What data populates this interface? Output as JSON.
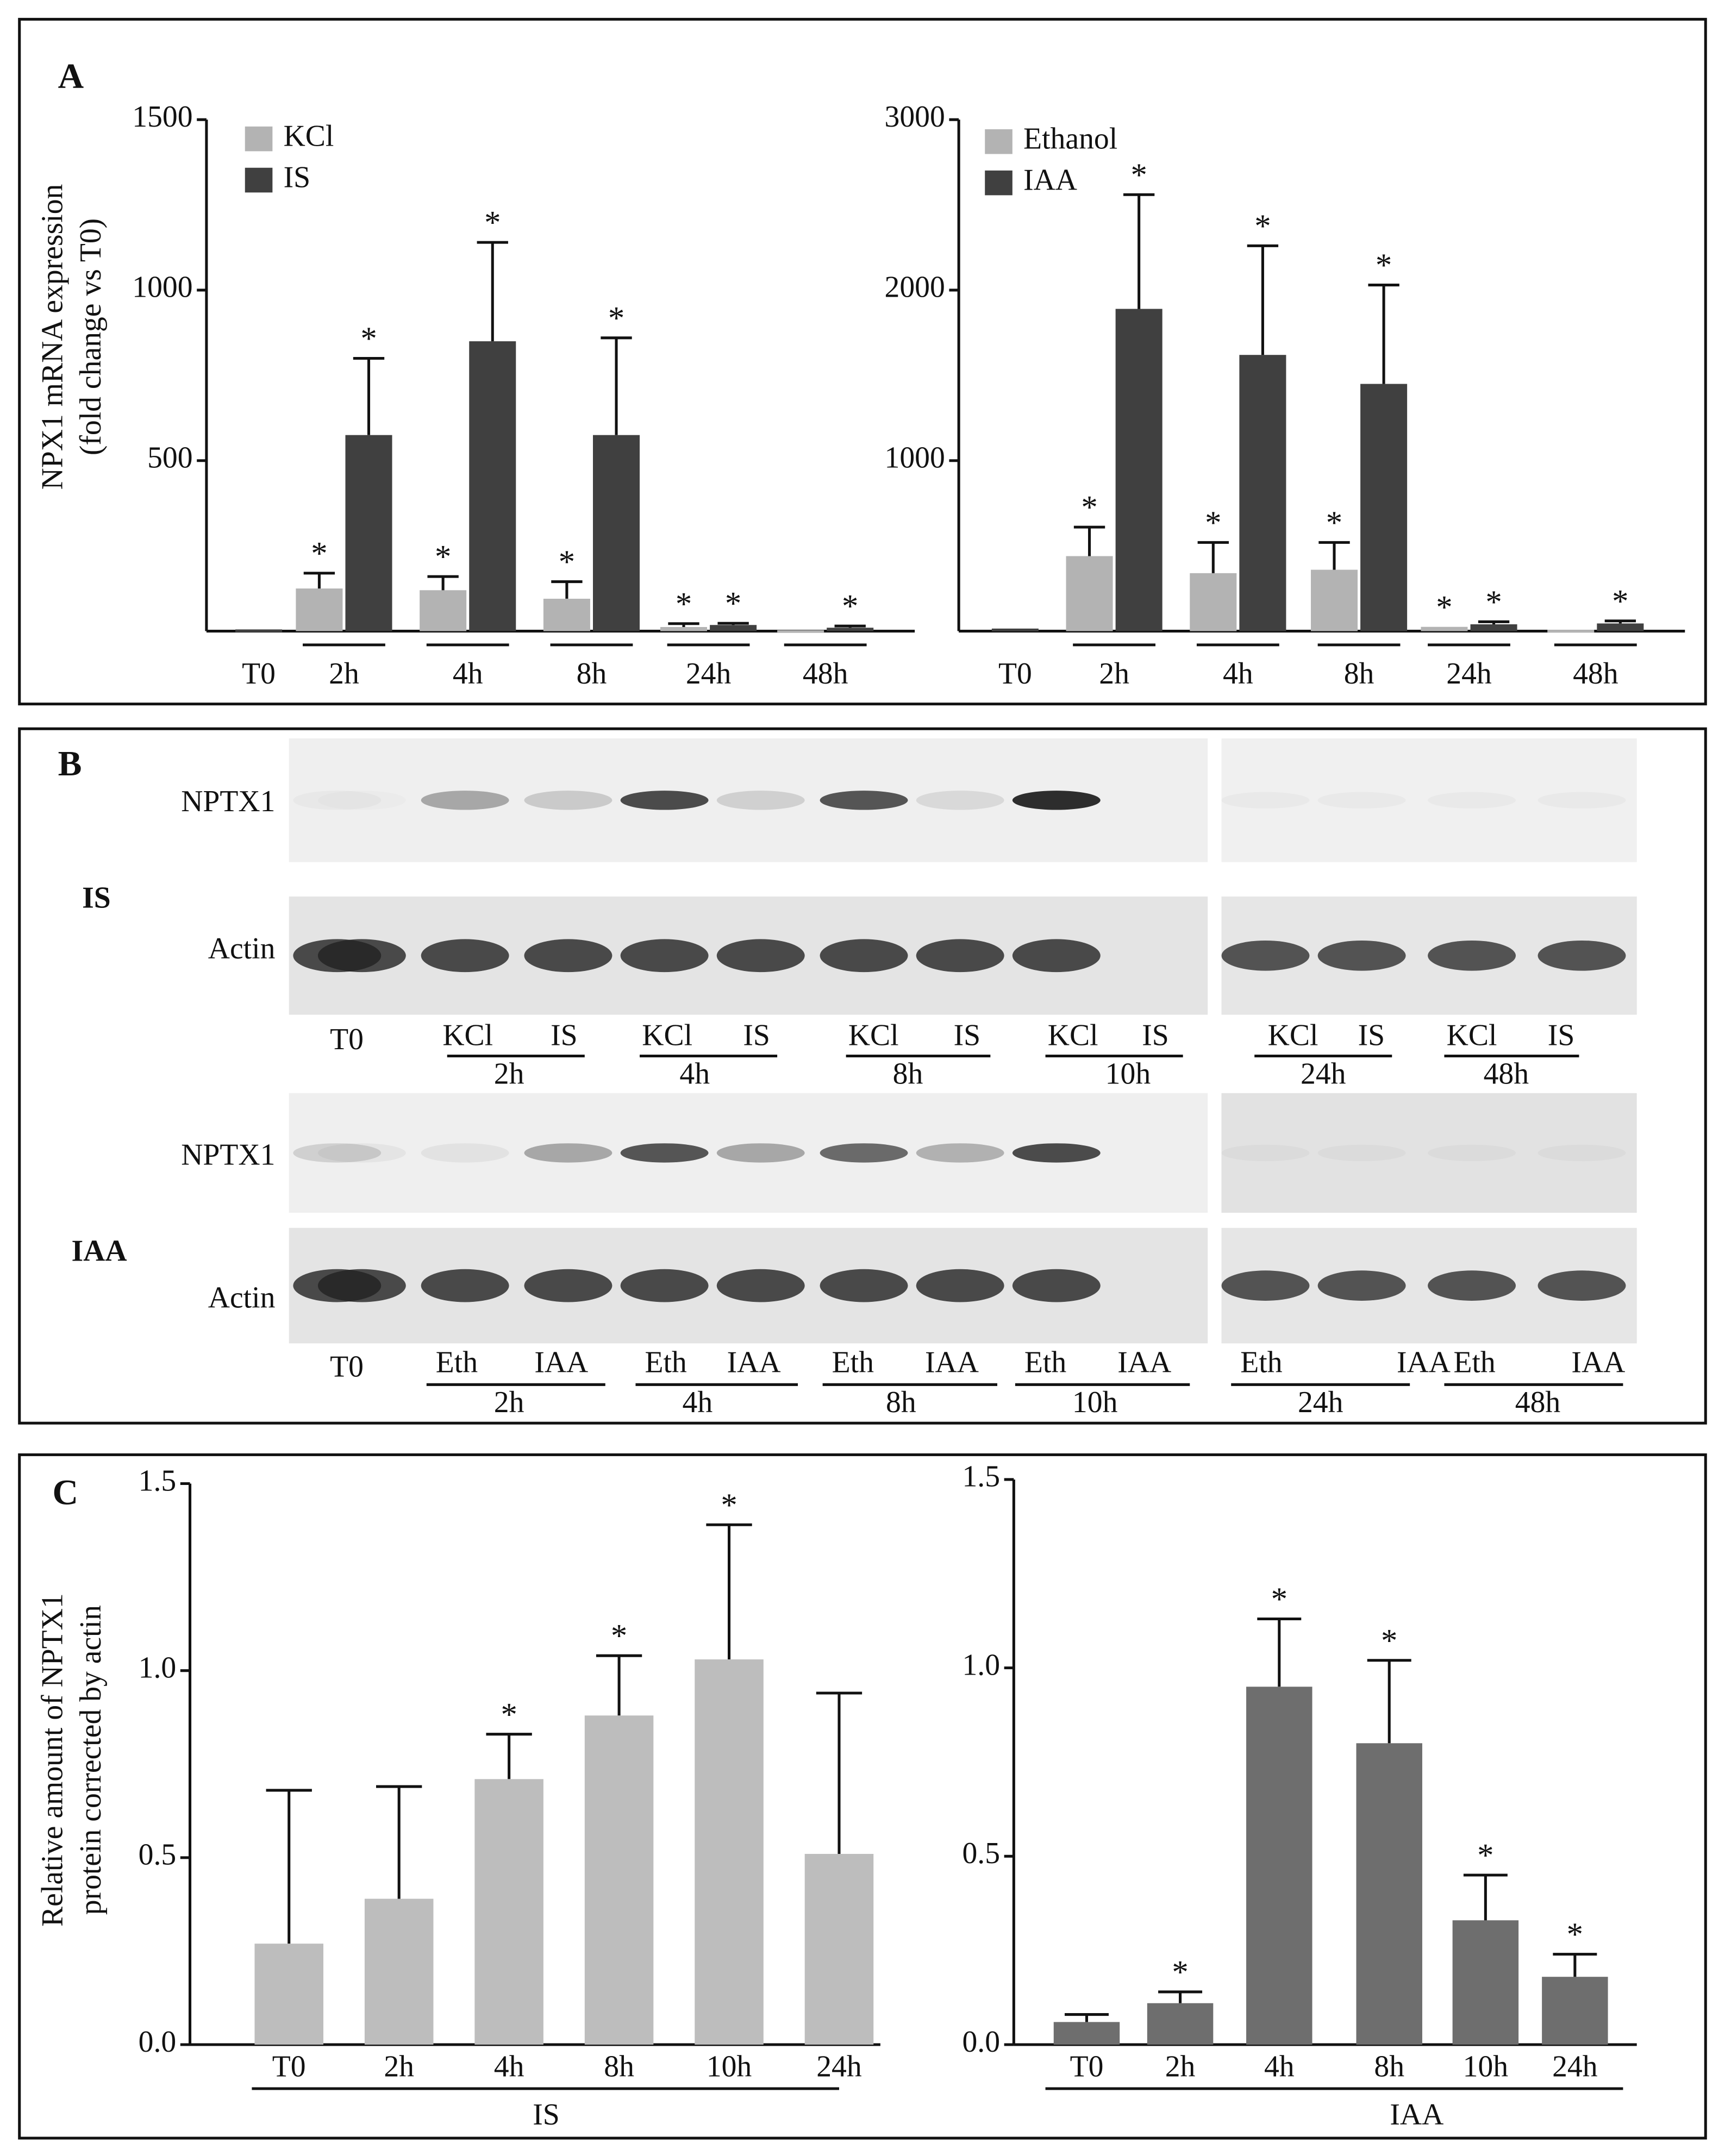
{
  "chart_data": [
    {
      "type": "bar",
      "panel": "A",
      "ylabel": [
        "NPX1 mRNA expression",
        "(fold change vs T0)"
      ],
      "categories": [
        "T0",
        "2h",
        "4h",
        "8h",
        "24h",
        "48h"
      ],
      "series": [
        {
          "name": "KCl",
          "color": "#b3b3b3",
          "values": [
            null,
            125,
            120,
            95,
            12,
            3
          ],
          "errors": [
            null,
            45,
            40,
            50,
            10,
            null
          ],
          "significance": [
            null,
            "*",
            "*",
            "*",
            "*",
            null
          ]
        },
        {
          "name": "IS",
          "color": "#404040",
          "values": [
            5,
            575,
            850,
            575,
            18,
            10
          ],
          "errors": [
            null,
            225,
            290,
            285,
            5,
            5
          ],
          "significance": [
            null,
            "*",
            "*",
            "*",
            "*",
            "*"
          ]
        }
      ],
      "ylim": [
        0,
        1500
      ],
      "yticks": [
        500,
        1000,
        1500
      ],
      "legend": "upper left"
    },
    {
      "type": "bar",
      "categories": [
        "T0",
        "2h",
        "4h",
        "8h",
        "24h",
        "48h"
      ],
      "series": [
        {
          "name": "Ethanol",
          "color": "#b3b3b3",
          "values": [
            null,
            440,
            340,
            360,
            25,
            8
          ],
          "errors": [
            null,
            170,
            180,
            160,
            null,
            null
          ],
          "significance": [
            null,
            "*",
            "*",
            "*",
            "*",
            null
          ]
        },
        {
          "name": "IAA",
          "color": "#404040",
          "values": [
            15,
            1890,
            1620,
            1450,
            40,
            45
          ],
          "errors": [
            null,
            670,
            640,
            580,
            15,
            15
          ],
          "significance": [
            null,
            "*",
            "*",
            "*",
            "*",
            "*"
          ]
        }
      ],
      "ylim": [
        0,
        3000
      ],
      "yticks": [
        1000,
        2000,
        3000
      ],
      "legend": "upper left"
    },
    {
      "type": "bar",
      "panel": "C",
      "ylabel": [
        "Relative amount of NPTX1",
        "protein corrected by actin"
      ],
      "xlabel": "IS",
      "categories": [
        "T0",
        "2h",
        "4h",
        "8h",
        "10h",
        "24h"
      ],
      "color": "#bdbdbd",
      "values": [
        0.27,
        0.39,
        0.71,
        0.88,
        1.03,
        0.51
      ],
      "errors": [
        0.41,
        0.3,
        0.12,
        0.16,
        0.36,
        0.43
      ],
      "significance": [
        null,
        null,
        "*",
        "*",
        "*",
        null
      ],
      "ylim": [
        0,
        1.5
      ],
      "yticks": [
        {
          "value": 0,
          "label": "0.0"
        },
        {
          "value": 0.5,
          "label": "0.5"
        },
        {
          "value": 1,
          "label": "1.0"
        },
        {
          "value": 1.5,
          "label": "1.5"
        }
      ]
    },
    {
      "type": "bar",
      "xlabel": "IAA",
      "categories": [
        "T0",
        "2h",
        "4h",
        "8h",
        "10h",
        "24h"
      ],
      "color": "#6e6e6e",
      "values": [
        0.06,
        0.11,
        0.95,
        0.8,
        0.33,
        0.18
      ],
      "errors": [
        0.02,
        0.03,
        0.18,
        0.22,
        0.12,
        0.06
      ],
      "significance": [
        null,
        "*",
        "*",
        "*",
        "*",
        "*"
      ],
      "ylim": [
        0,
        1.5
      ],
      "yticks": [
        {
          "value": 0,
          "label": "0.0"
        },
        {
          "value": 0.5,
          "label": "0.5"
        },
        {
          "value": 1,
          "label": "1.0"
        },
        {
          "value": 1.5,
          "label": "1.5"
        }
      ]
    }
  ],
  "blot": {
    "panel": "B",
    "sections": [
      {
        "name": "IS",
        "rows": [
          "NPTX1",
          "Actin"
        ],
        "t0": "T0",
        "timepoints": [
          {
            "time": "2h",
            "lanes": [
              "KCl",
              "IS"
            ]
          },
          {
            "time": "4h",
            "lanes": [
              "KCl",
              "IS"
            ]
          },
          {
            "time": "8h",
            "lanes": [
              "KCl",
              "IS"
            ]
          },
          {
            "time": "10h",
            "lanes": [
              "KCl",
              "IS"
            ]
          },
          {
            "time": "24h",
            "lanes": [
              "KCl",
              "IS"
            ]
          },
          {
            "time": "48h",
            "lanes": [
              "KCl",
              "IS"
            ]
          }
        ]
      },
      {
        "name": "IAA",
        "rows": [
          "NPTX1",
          "Actin"
        ],
        "t0": "T0",
        "timepoints": [
          {
            "time": "2h",
            "lanes": [
              "Eth",
              "IAA"
            ]
          },
          {
            "time": "4h",
            "lanes": [
              "Eth",
              "IAA"
            ]
          },
          {
            "time": "8h",
            "lanes": [
              "Eth",
              "IAA"
            ]
          },
          {
            "time": "10h",
            "lanes": [
              "Eth",
              "IAA"
            ]
          },
          {
            "time": "24h",
            "lanes": [
              "Eth",
              "IAA"
            ]
          },
          {
            "time": "48h",
            "lanes": [
              "Eth",
              "IAA"
            ]
          }
        ]
      }
    ]
  }
}
